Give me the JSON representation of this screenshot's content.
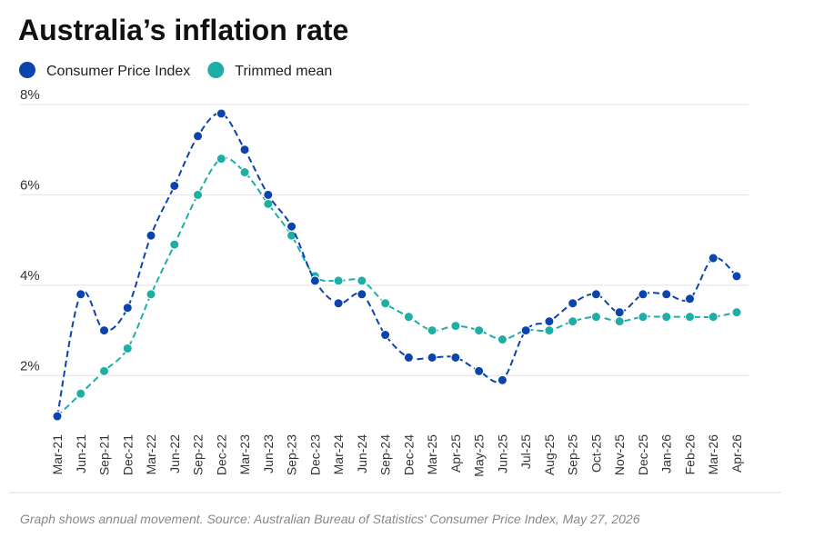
{
  "chart_data": {
    "type": "line",
    "title": "Australia’s inflation rate",
    "footnote": "Graph shows annual movement. Source:  Australian Bureau of Statistics' Consumer Price Index, May 27, 2026",
    "categories": [
      "Mar-21",
      "Jun-21",
      "Sep-21",
      "Dec-21",
      "Mar-22",
      "Jun-22",
      "Sep-22",
      "Dec-22",
      "Mar-23",
      "Jun-23",
      "Sep-23",
      "Dec-23",
      "Mar-24",
      "Jun-24",
      "Sep-24",
      "Dec-24",
      "Mar-25",
      "Apr-25",
      "May-25",
      "Jun-25",
      "Jul-25",
      "Aug-25",
      "Sep-25",
      "Oct-25",
      "Nov-25",
      "Dec-25",
      "Jan-26",
      "Feb-26",
      "Mar-26",
      "Apr-26"
    ],
    "series": [
      {
        "name": "Consumer Price Index",
        "color": "#0b44ad",
        "values": [
          1.1,
          3.8,
          3.0,
          3.5,
          5.1,
          6.2,
          7.3,
          7.8,
          7.0,
          6.0,
          5.3,
          4.1,
          3.6,
          3.8,
          2.9,
          2.4,
          2.4,
          2.4,
          2.1,
          1.9,
          3.0,
          3.2,
          3.6,
          3.8,
          3.4,
          3.8,
          3.8,
          3.7,
          4.6,
          4.2
        ]
      },
      {
        "name": "Trimmed mean",
        "color": "#1eaea6",
        "values": [
          1.1,
          1.6,
          2.1,
          2.6,
          3.8,
          4.9,
          6.0,
          6.8,
          6.5,
          5.8,
          5.1,
          4.2,
          4.1,
          4.1,
          3.6,
          3.3,
          3.0,
          3.1,
          3.0,
          2.8,
          3.0,
          3.0,
          3.2,
          3.3,
          3.2,
          3.3,
          3.3,
          3.3,
          3.3,
          3.4
        ]
      }
    ],
    "ylim": [
      1,
      8
    ],
    "yticks": [
      {
        "value": 2,
        "label": "2%"
      },
      {
        "value": 4,
        "label": "4%"
      },
      {
        "value": 6,
        "label": "6%"
      },
      {
        "value": 8,
        "label": "8%"
      }
    ],
    "grid": true
  }
}
